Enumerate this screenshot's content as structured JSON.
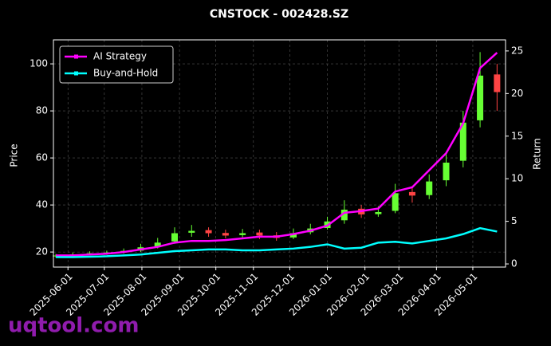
{
  "chart_data": {
    "type": "candlestick",
    "title": "CNSTOCK - 002428.SZ",
    "x": [
      "2025-05-22",
      "2025-06-05",
      "2025-06-19",
      "2025-07-03",
      "2025-07-17",
      "2025-07-31",
      "2025-08-14",
      "2025-08-28",
      "2025-09-11",
      "2025-09-25",
      "2025-10-09",
      "2025-10-23",
      "2025-11-06",
      "2025-11-20",
      "2025-12-04",
      "2025-12-18",
      "2026-01-01",
      "2026-01-15",
      "2026-01-29",
      "2026-02-12",
      "2026-02-26",
      "2026-03-12",
      "2026-03-26",
      "2026-04-09",
      "2026-04-23",
      "2026-05-07",
      "2026-05-21"
    ],
    "open": [
      18.2,
      18.6,
      19.2,
      19.4,
      19.9,
      20.6,
      22.3,
      24.5,
      28.2,
      29.3,
      28.1,
      27.2,
      28.3,
      27.1,
      26.2,
      28.4,
      30.2,
      33.5,
      38.4,
      36.1,
      37.5,
      45.5,
      44.2,
      50.5,
      58.8,
      76,
      95.5
    ],
    "high": [
      19.2,
      19.8,
      20.3,
      20.6,
      21.5,
      23.5,
      26,
      30.5,
      31.5,
      30.5,
      29.5,
      29.8,
      29.5,
      28.5,
      30,
      32,
      35,
      42,
      40,
      39.5,
      49,
      48,
      53,
      62,
      80,
      105,
      100
    ],
    "low": [
      17.6,
      18,
      18.6,
      18.8,
      19.3,
      20,
      21.5,
      23.5,
      26.5,
      26.5,
      25.8,
      26.2,
      25.5,
      24.8,
      25.5,
      27.5,
      29.5,
      32,
      34.5,
      35,
      36.5,
      41,
      42.5,
      48,
      56,
      73,
      80
    ],
    "close": [
      18.5,
      19,
      19.5,
      19.8,
      20.5,
      22,
      24,
      28,
      29,
      28,
      27,
      28,
      27,
      26,
      28,
      30,
      33,
      38,
      36,
      37,
      45,
      44,
      50,
      58,
      75,
      95,
      88
    ],
    "up_color": "#66ff33",
    "down_color": "#ff4444",
    "series": [
      {
        "name": "AI Strategy",
        "color": "#ff00ff",
        "axis": "y2",
        "values": [
          1,
          1,
          1.1,
          1.2,
          1.4,
          1.7,
          2,
          2.5,
          2.7,
          2.7,
          2.8,
          3,
          3.2,
          3.2,
          3.5,
          3.9,
          4.5,
          6,
          6.2,
          6.5,
          8.5,
          9,
          11,
          13,
          16.5,
          23,
          24.8
        ]
      },
      {
        "name": "Buy-and-Hold",
        "color": "#00ffff",
        "axis": "y2",
        "values": [
          0.8,
          0.8,
          0.85,
          0.9,
          1,
          1.1,
          1.3,
          1.5,
          1.6,
          1.7,
          1.7,
          1.6,
          1.6,
          1.7,
          1.8,
          2,
          2.3,
          1.8,
          1.9,
          2.5,
          2.6,
          2.4,
          2.7,
          3.0,
          3.5,
          4.2,
          3.8
        ]
      }
    ],
    "xlim": [
      "2025-05-20",
      "2026-05-28"
    ],
    "xticks": [
      "2025-06-01",
      "2025-07-01",
      "2025-08-01",
      "2025-09-01",
      "2025-10-01",
      "2025-11-01",
      "2025-12-01",
      "2026-01-01",
      "2026-02-01",
      "2026-03-01",
      "2026-04-01",
      "2026-05-01"
    ],
    "ylim": [
      13.6,
      110.2
    ],
    "yticks": [
      20,
      40,
      60,
      80,
      100
    ],
    "y2lim": [
      -0.37,
      26.3
    ],
    "y2ticks": [
      0,
      5,
      10,
      15,
      20,
      25
    ],
    "ylabel": "Price",
    "y2label": "Return",
    "grid": true,
    "legend": "upper left"
  },
  "watermark": "uqtool.com"
}
